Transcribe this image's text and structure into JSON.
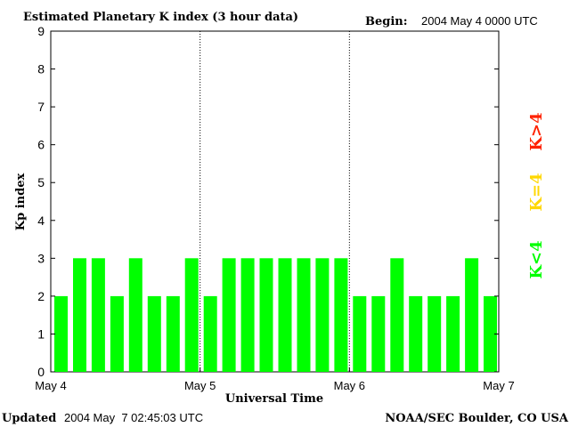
{
  "header": {
    "title": "Estimated Planetary K index (3 hour data)",
    "begin_label": "Begin:",
    "begin_value": "2004 May 4 0000 UTC"
  },
  "footer": {
    "updated_label": "Updated",
    "updated_value": "2004 May  7 02:45:03 UTC",
    "source": "NOAA/SEC Boulder, CO USA"
  },
  "legend": [
    {
      "label": "K<4",
      "color": "#00ff00"
    },
    {
      "label": "K=4",
      "color": "#ffd700"
    },
    {
      "label": "K>4",
      "color": "#ff2200"
    }
  ],
  "chart_data": {
    "type": "bar",
    "title": "Estimated Planetary K index (3 hour data)",
    "xlabel": "Universal Time",
    "ylabel": "Kp index",
    "ylim": [
      0,
      9
    ],
    "yticks": [
      "0",
      "1",
      "2",
      "3",
      "4",
      "5",
      "6",
      "7",
      "8",
      "9"
    ],
    "xticks": [
      "May 4",
      "May 5",
      "May 6",
      "May 7"
    ],
    "day_dividers": true,
    "bar_color": "#00ff00",
    "values": [
      2,
      3,
      3,
      2,
      3,
      2,
      2,
      3,
      2,
      3,
      3,
      3,
      3,
      3,
      3,
      3,
      2,
      2,
      3,
      2,
      2,
      2,
      3,
      2
    ]
  }
}
